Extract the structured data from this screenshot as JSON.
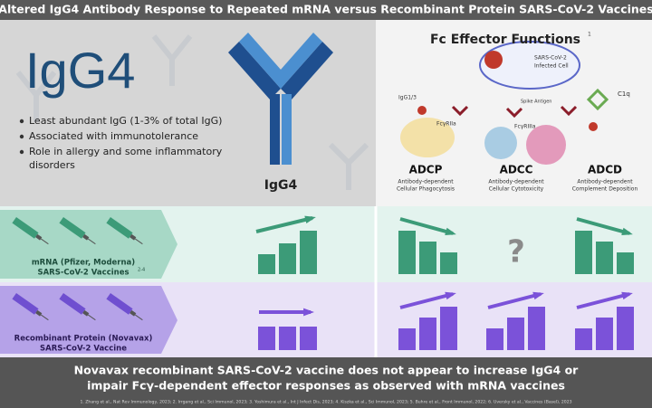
{
  "header": {
    "title": "Altered IgG4 Antibody Response to Repeated mRNA versus Recombinant Protein SARS-CoV-2 Vaccines"
  },
  "igg4_panel": {
    "heading": "IgG4",
    "bullets": [
      [
        "Least abundant IgG (1-3% of total IgG)"
      ],
      [
        "Associated with immunotolerance"
      ],
      [
        "Role in allergy and some inflammatory",
        "disorders"
      ]
    ],
    "antibody_label": "IgG4"
  },
  "fc_panel": {
    "heading": "Fc Effector Functions",
    "heading_ref": "1",
    "illustration_labels": {
      "cell": [
        "SARS-CoV-2",
        "Infected Cell"
      ],
      "antibody": "IgG1/3",
      "receptor_a": "FcγRIIa",
      "spike": "Spike Antigen",
      "complement": "C1q",
      "receptor_b": "FcγRIIIa"
    },
    "functions": [
      {
        "name": "ADCP",
        "description": [
          "Antibody-dependent",
          "Cellular Phagocytosis"
        ]
      },
      {
        "name": "ADCC",
        "description": [
          "Antibody-dependent",
          "Cellular Cytotoxicity"
        ]
      },
      {
        "name": "ADCD",
        "description": [
          "Antibody-dependent",
          "Complement Deposition"
        ]
      }
    ]
  },
  "rows": [
    {
      "label_lines": [
        "mRNA (Pfizer, Moderna)",
        "SARS-CoV-2 Vaccines"
      ],
      "ref": "2-4"
    },
    {
      "label_lines": [
        "Recombinant Protein (Novavax)",
        "SARS-CoV-2 Vaccine"
      ]
    }
  ],
  "unknown_marker": "?",
  "footer": {
    "conclusion": [
      "Novavax recombinant SARS-CoV-2 vaccine does not appear to increase IgG4 or",
      "impair Fcγ-dependent effector responses as observed with mRNA vaccines"
    ],
    "references": "1. Zhang et al., Nat Rev Immunology, 2023; 2. Irrgang et al., Sci Immunol, 2023; 3. Yoshimura et al., Int J Infect Dis, 2023; 4. Kiszka et al., Sci Immunol, 2023; 5. Buhre et al., Front Immunol, 2022; 6. Uversky et al., Vaccines (Basel), 2023"
  }
}
